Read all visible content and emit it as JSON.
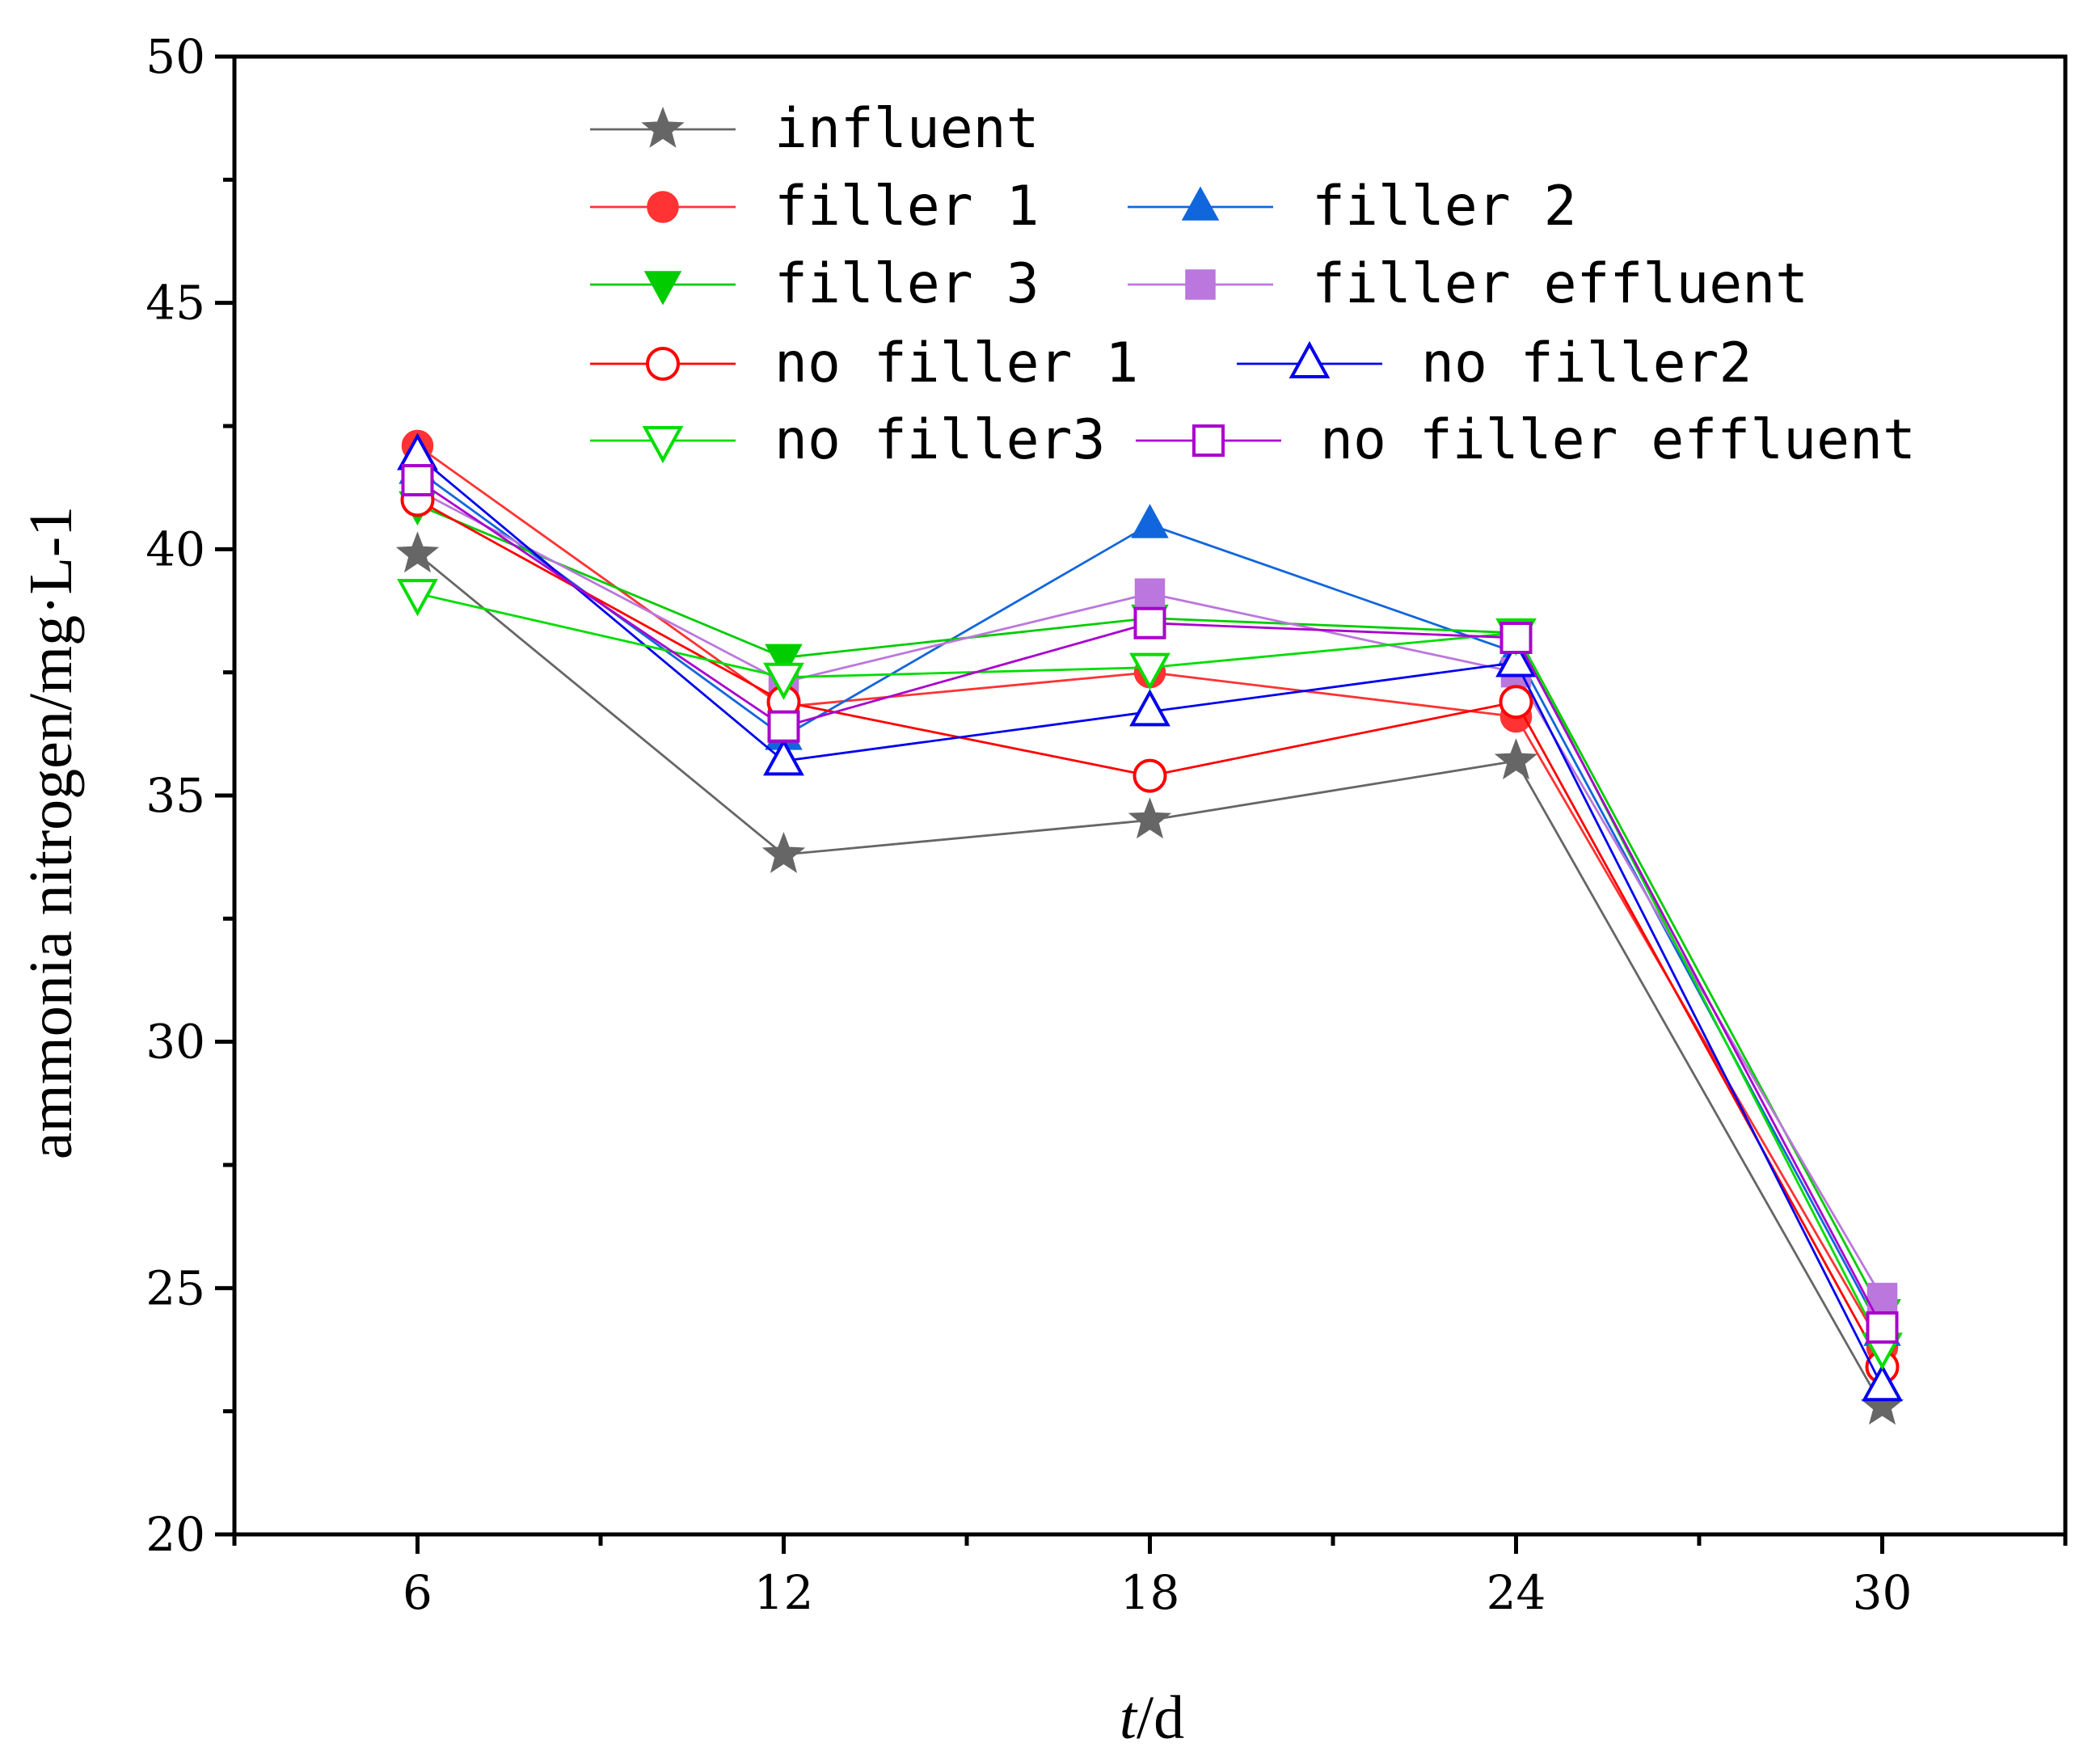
{
  "chart_data": {
    "type": "line",
    "title": "",
    "xlabel_italic": "t",
    "xlabel_rest": "/d",
    "ylabel": "ammonia nitrogen/mg·L-1",
    "x": [
      6,
      12,
      18,
      24,
      30
    ],
    "xticks": [
      "6",
      "12",
      "18",
      "24",
      "30"
    ],
    "yticks": [
      "20",
      "25",
      "30",
      "35",
      "40",
      "45",
      "50"
    ],
    "xlim": [
      3,
      33
    ],
    "ylim": [
      20,
      50
    ],
    "grid": false,
    "legend_position": "top",
    "series": [
      {
        "name": "influent",
        "color": "#666666",
        "marker": "star",
        "filled": true,
        "values": [
          39.9,
          33.8,
          34.5,
          35.7,
          22.6
        ]
      },
      {
        "name": "filler 1",
        "color": "#ff3333",
        "marker": "circle",
        "filled": true,
        "values": [
          42.1,
          36.8,
          37.5,
          36.6,
          23.8
        ]
      },
      {
        "name": "filler 2",
        "color": "#1166dd",
        "marker": "triangle-up",
        "filled": true,
        "values": [
          41.6,
          36.2,
          40.5,
          37.9,
          24.1
        ]
      },
      {
        "name": "filler 3",
        "color": "#00cc00",
        "marker": "triangle-down",
        "filled": true,
        "values": [
          40.9,
          37.8,
          38.6,
          38.3,
          24.5
        ]
      },
      {
        "name": "filler effluent",
        "color": "#bb77dd",
        "marker": "square",
        "filled": true,
        "values": [
          41.2,
          37.3,
          39.1,
          37.5,
          24.8
        ]
      },
      {
        "name": "no filler 1",
        "color": "#ff0000",
        "marker": "circle",
        "filled": false,
        "values": [
          41.0,
          36.9,
          35.4,
          36.9,
          23.4
        ]
      },
      {
        "name": "no filler2",
        "color": "#0000ee",
        "marker": "triangle-up",
        "filled": false,
        "values": [
          41.9,
          35.7,
          36.7,
          37.7,
          23.0
        ]
      },
      {
        "name": "no filler3",
        "color": "#00dd00",
        "marker": "triangle-down",
        "filled": false,
        "values": [
          39.1,
          37.4,
          37.6,
          38.3,
          23.8
        ]
      },
      {
        "name": "no filler effluent",
        "color": "#aa00cc",
        "marker": "square",
        "filled": false,
        "values": [
          41.4,
          36.4,
          38.5,
          38.2,
          24.2
        ]
      }
    ]
  }
}
